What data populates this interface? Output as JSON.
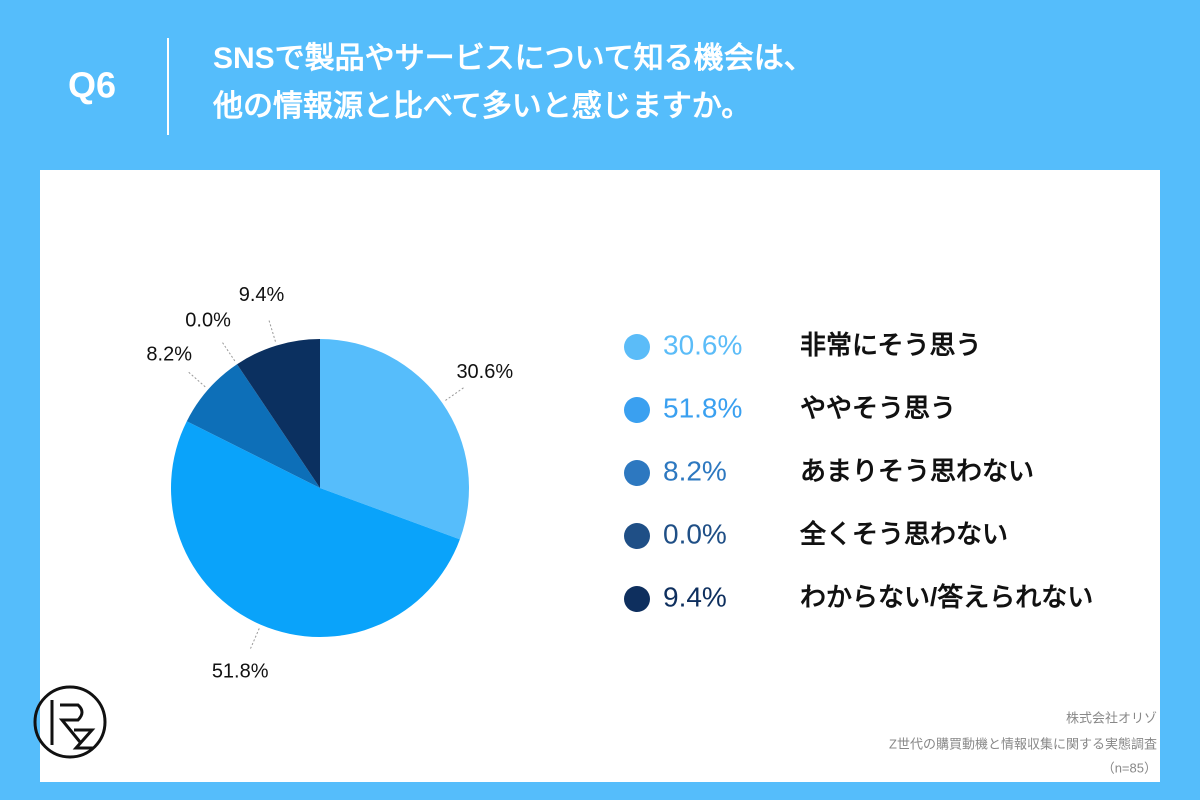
{
  "header": {
    "question": "Q6",
    "title": [
      "SNSで製品やサービスについて知る機会は、",
      "他の情報源と比べて多いと感じますか。"
    ]
  },
  "chart_data": {
    "type": "pie",
    "categories": [
      "非常にそう思う",
      "ややそう思う",
      "あまりそう思わない",
      "全くそう思わない",
      "わからない/答えられない"
    ],
    "values": [
      30.6,
      51.8,
      8.2,
      0.0,
      9.4
    ],
    "value_labels": [
      "30.6%",
      "51.8%",
      "8.2%",
      "0.0%",
      "9.4%"
    ],
    "colors": [
      "#56bdfb",
      "#0aa3fa",
      "#0d6fb8",
      "#1b4f86",
      "#0b3060"
    ],
    "legend_colors": [
      "#5bbcf8",
      "#3aa0f0",
      "#2d78c0",
      "#1f4f86",
      "#0e2f5e"
    ]
  },
  "footer": {
    "company": "株式会社オリゾ",
    "survey": "Z世代の購買動機と情報収集に関する実態調査",
    "sample": "（n=85）"
  }
}
